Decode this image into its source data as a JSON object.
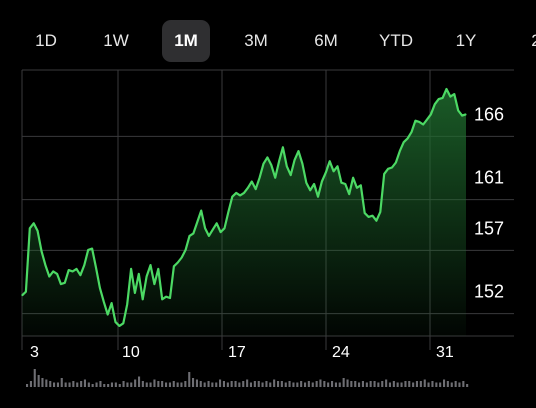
{
  "range_tabs": [
    {
      "label": "1D",
      "active": false
    },
    {
      "label": "1W",
      "active": false
    },
    {
      "label": "1M",
      "active": true
    },
    {
      "label": "3M",
      "active": false
    },
    {
      "label": "6M",
      "active": false
    },
    {
      "label": "YTD",
      "active": false
    },
    {
      "label": "1Y",
      "active": false
    },
    {
      "label": "2",
      "active": false
    }
  ],
  "colors": {
    "line": "#4cd964",
    "fill_top": "#1f6b2e",
    "grid": "#3a3a3c",
    "background": "#000000",
    "volume": "#6e6e73"
  },
  "chart_data": {
    "type": "area",
    "title": "",
    "xlabel": "",
    "ylabel": "",
    "y_ticks": [
      152,
      157,
      161,
      166
    ],
    "ylim": [
      148.5,
      169.5
    ],
    "x_ticks": [
      "3",
      "10",
      "17",
      "24",
      "31"
    ],
    "grid": true,
    "series": [
      {
        "values": [
          151.7,
          152.0,
          157.0,
          157.4,
          156.8,
          155.2,
          154.1,
          153.2,
          153.6,
          153.4,
          152.6,
          152.7,
          153.7,
          153.6,
          153.8,
          153.3,
          154.1,
          155.3,
          155.4,
          153.9,
          152.3,
          151.2,
          150.2,
          151.1,
          149.6,
          149.3,
          149.5,
          151.0,
          153.8,
          151.9,
          153.4,
          151.4,
          153.2,
          154.1,
          152.6,
          153.8,
          151.4,
          151.6,
          151.5,
          154.0,
          154.3,
          154.7,
          155.3,
          156.4,
          156.6,
          157.5,
          158.4,
          157.0,
          156.4,
          156.9,
          157.4,
          156.7,
          157.0,
          158.3,
          159.5,
          159.8,
          159.6,
          159.8,
          160.2,
          160.7,
          160.1,
          161.0,
          162.1,
          162.6,
          162.0,
          161.0,
          162.3,
          163.4,
          161.9,
          161.2,
          162.4,
          163.1,
          162.1,
          160.6,
          160.0,
          160.5,
          159.5,
          160.7,
          161.4,
          162.3,
          161.5,
          161.9,
          160.6,
          160.5,
          159.7,
          161.0,
          160.2,
          160.4,
          158.2,
          157.9,
          158.0,
          157.6,
          158.3,
          161.3,
          161.7,
          161.8,
          162.2,
          163.1,
          163.8,
          164.1,
          164.6,
          165.5,
          165.4,
          165.2,
          165.6,
          166.0,
          166.8,
          167.2,
          167.3,
          168.0,
          167.4,
          167.6,
          166.3,
          165.9,
          166.0
        ]
      }
    ],
    "volume": [
      2,
      4,
      12,
      8,
      6,
      5,
      4,
      3,
      3,
      6,
      3,
      3,
      4,
      3,
      4,
      5,
      3,
      2,
      3,
      4,
      2,
      2,
      3,
      3,
      2,
      4,
      3,
      3,
      5,
      7,
      4,
      3,
      3,
      5,
      4,
      4,
      3,
      3,
      4,
      3,
      3,
      4,
      10,
      6,
      5,
      4,
      3,
      4,
      3,
      3,
      5,
      4,
      3,
      4,
      4,
      3,
      4,
      5,
      3,
      4,
      4,
      3,
      4,
      3,
      5,
      4,
      4,
      3,
      4,
      3,
      3,
      4,
      3,
      4,
      3,
      4,
      5,
      4,
      3,
      4,
      3,
      3,
      6,
      5,
      4,
      4,
      3,
      4,
      3,
      4,
      4,
      3,
      4,
      5,
      3,
      4,
      3,
      3,
      4,
      4,
      3,
      4,
      4,
      5,
      3,
      4,
      3,
      3,
      5,
      4,
      3,
      4,
      3,
      4,
      2
    ]
  }
}
